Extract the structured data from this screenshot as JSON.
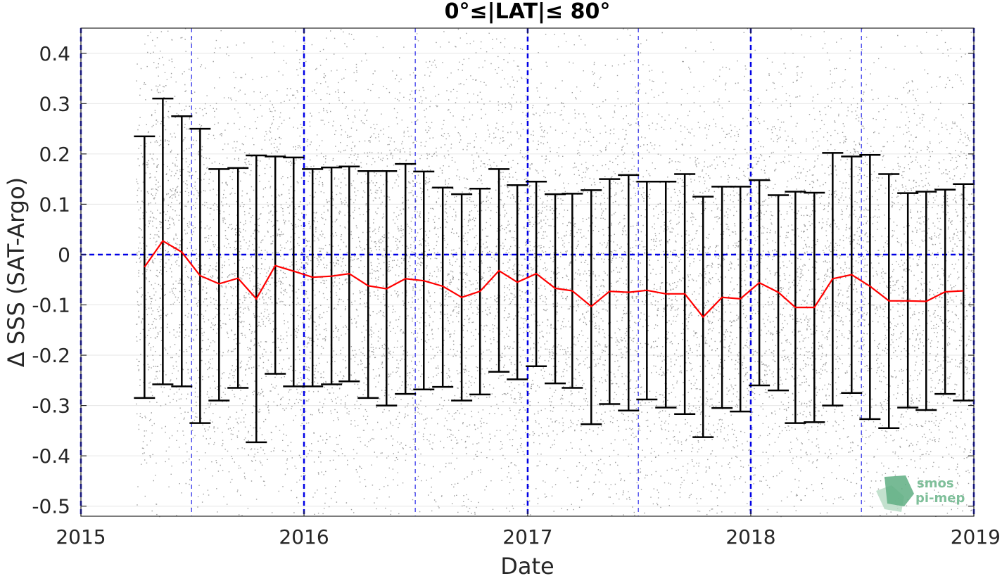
{
  "chart_data": {
    "type": "scatter",
    "title": "0°≤|LAT|≤ 80°",
    "xlabel": "Date",
    "ylabel": "Δ SSS (SAT-Argo)",
    "xlim": [
      "2015-01-01",
      "2019-01-01"
    ],
    "ylim": [
      -0.52,
      0.45
    ],
    "x_ticks": [
      "2015",
      "2016",
      "2017",
      "2018",
      "2019"
    ],
    "y_ticks": [
      0.4,
      0.3,
      0.2,
      0.1,
      0,
      -0.1,
      -0.2,
      -0.3,
      -0.4,
      -0.5
    ],
    "y_tick_labels": [
      "0.4",
      "0.3",
      "0.2",
      "0.1",
      "0",
      "-0.1",
      "-0.2",
      "-0.3",
      "-0.4",
      "-0.5"
    ],
    "grid": true,
    "scatter_date_range": [
      "2015-04-01",
      "2019-01-01"
    ],
    "colors": {
      "scatter": "#8c8c8c",
      "mean_line": "#ff0000",
      "error_bars": "#000000",
      "reference_lines": "#0000e6"
    },
    "reference_lines": {
      "horizontal": [
        0
      ],
      "vertical_major": [
        "2015-01-01",
        "2016-01-01",
        "2017-01-01",
        "2018-01-01",
        "2019-01-01"
      ],
      "vertical_minor": [
        "2015-07-01",
        "2016-07-01",
        "2017-07-01",
        "2018-07-01"
      ]
    },
    "series": [
      {
        "months": [
          "2015-04",
          "2015-05",
          "2015-06",
          "2015-07",
          "2015-08",
          "2015-09",
          "2015-10",
          "2015-11",
          "2015-12",
          "2016-01",
          "2016-02",
          "2016-03",
          "2016-04",
          "2016-05",
          "2016-06",
          "2016-07",
          "2016-08",
          "2016-09",
          "2016-10",
          "2016-11",
          "2016-12",
          "2017-01",
          "2017-02",
          "2017-03",
          "2017-04",
          "2017-05",
          "2017-06",
          "2017-07",
          "2017-08",
          "2017-09",
          "2017-10",
          "2017-11",
          "2017-12",
          "2018-01",
          "2018-02",
          "2018-03",
          "2018-04",
          "2018-05",
          "2018-06",
          "2018-07",
          "2018-08",
          "2018-09",
          "2018-10",
          "2018-11",
          "2018-12"
        ],
        "mean": [
          -0.025,
          0.027,
          0.005,
          -0.042,
          -0.058,
          -0.047,
          -0.088,
          -0.022,
          -0.033,
          -0.045,
          -0.043,
          -0.038,
          -0.062,
          -0.068,
          -0.048,
          -0.052,
          -0.063,
          -0.085,
          -0.073,
          -0.032,
          -0.055,
          -0.038,
          -0.067,
          -0.072,
          -0.103,
          -0.073,
          -0.075,
          -0.071,
          -0.078,
          -0.078,
          -0.124,
          -0.085,
          -0.088,
          -0.056,
          -0.075,
          -0.105,
          -0.105,
          -0.048,
          -0.04,
          -0.063,
          -0.092,
          -0.092,
          -0.093,
          -0.074,
          -0.072
        ],
        "upper": [
          0.235,
          0.31,
          0.275,
          0.25,
          0.17,
          0.172,
          0.197,
          0.195,
          0.193,
          0.17,
          0.173,
          0.175,
          0.166,
          0.166,
          0.18,
          0.165,
          0.133,
          0.12,
          0.131,
          0.17,
          0.138,
          0.145,
          0.12,
          0.121,
          0.128,
          0.15,
          0.158,
          0.145,
          0.145,
          0.16,
          0.115,
          0.135,
          0.135,
          0.148,
          0.118,
          0.125,
          0.123,
          0.202,
          0.195,
          0.198,
          0.16,
          0.122,
          0.125,
          0.129,
          0.14
        ],
        "lower": [
          -0.285,
          -0.258,
          -0.262,
          -0.335,
          -0.29,
          -0.265,
          -0.373,
          -0.237,
          -0.262,
          -0.262,
          -0.258,
          -0.252,
          -0.285,
          -0.3,
          -0.277,
          -0.268,
          -0.263,
          -0.29,
          -0.278,
          -0.233,
          -0.248,
          -0.222,
          -0.256,
          -0.265,
          -0.337,
          -0.297,
          -0.31,
          -0.288,
          -0.304,
          -0.317,
          -0.363,
          -0.305,
          -0.312,
          -0.26,
          -0.27,
          -0.335,
          -0.333,
          -0.3,
          -0.275,
          -0.327,
          -0.345,
          -0.304,
          -0.309,
          -0.277,
          -0.29
        ]
      }
    ]
  },
  "logo": {
    "line1": "smos",
    "line2": "pi-mep"
  }
}
